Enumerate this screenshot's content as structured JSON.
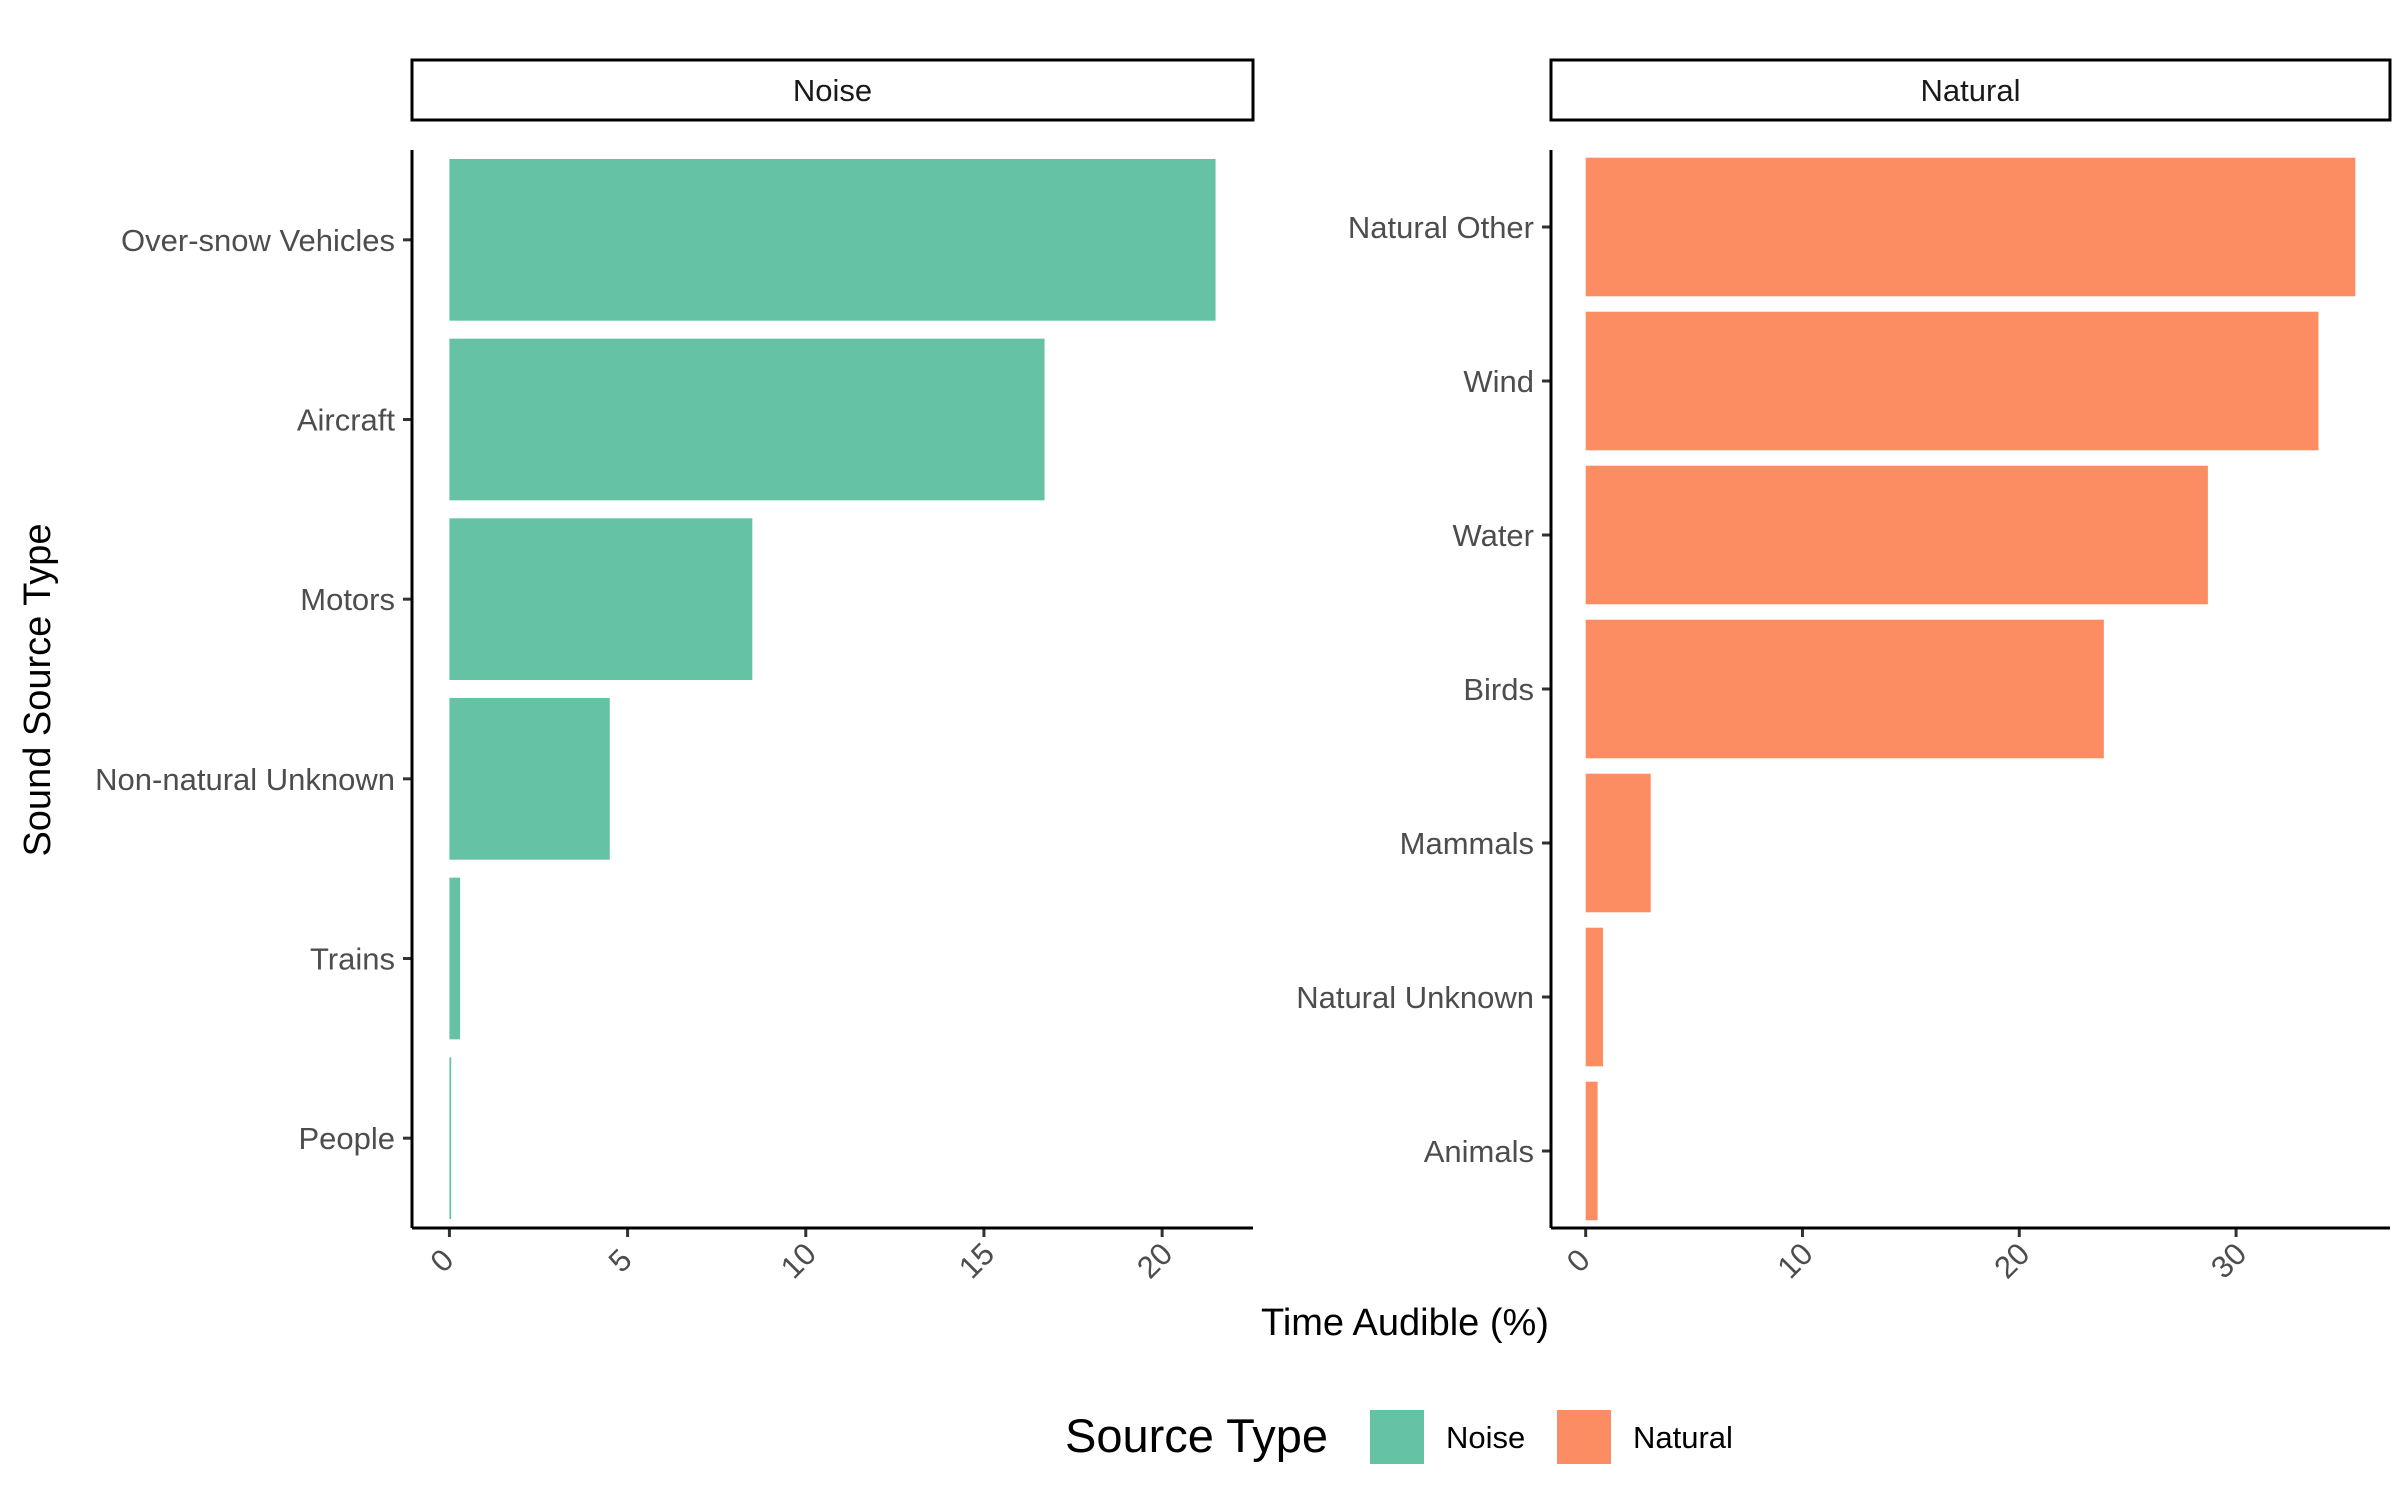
{
  "chart_data": {
    "type": "bar",
    "orientation": "horizontal",
    "xlabel": "Time Audible (%)",
    "ylabel": "Sound Source Type",
    "grid": false,
    "legend": {
      "title": "Source Type",
      "position": "bottom",
      "entries": [
        {
          "name": "Noise",
          "color": "#66c2a5"
        },
        {
          "name": "Natural",
          "color": "#fc8d62"
        }
      ]
    },
    "panels": [
      {
        "strip": "Noise",
        "color": "#66c2a5",
        "categories": [
          "Over-snow Vehicles",
          "Aircraft",
          "Motors",
          "Non-natural Unknown",
          "Trains",
          "People"
        ],
        "values": [
          21.5,
          16.7,
          8.5,
          4.5,
          0.3,
          0.05
        ],
        "xlim": [
          -1.05,
          22.55
        ],
        "xticks": [
          0,
          5,
          10,
          15,
          20
        ]
      },
      {
        "strip": "Natural",
        "color": "#fc8d62",
        "categories": [
          "Natural Other",
          "Wind",
          "Water",
          "Birds",
          "Mammals",
          "Natural Unknown",
          "Animals"
        ],
        "values": [
          35.5,
          33.8,
          28.7,
          23.9,
          3.0,
          0.8,
          0.55
        ],
        "xlim": [
          -1.6,
          37.1
        ],
        "xticks": [
          0,
          10,
          20,
          30
        ]
      }
    ]
  }
}
